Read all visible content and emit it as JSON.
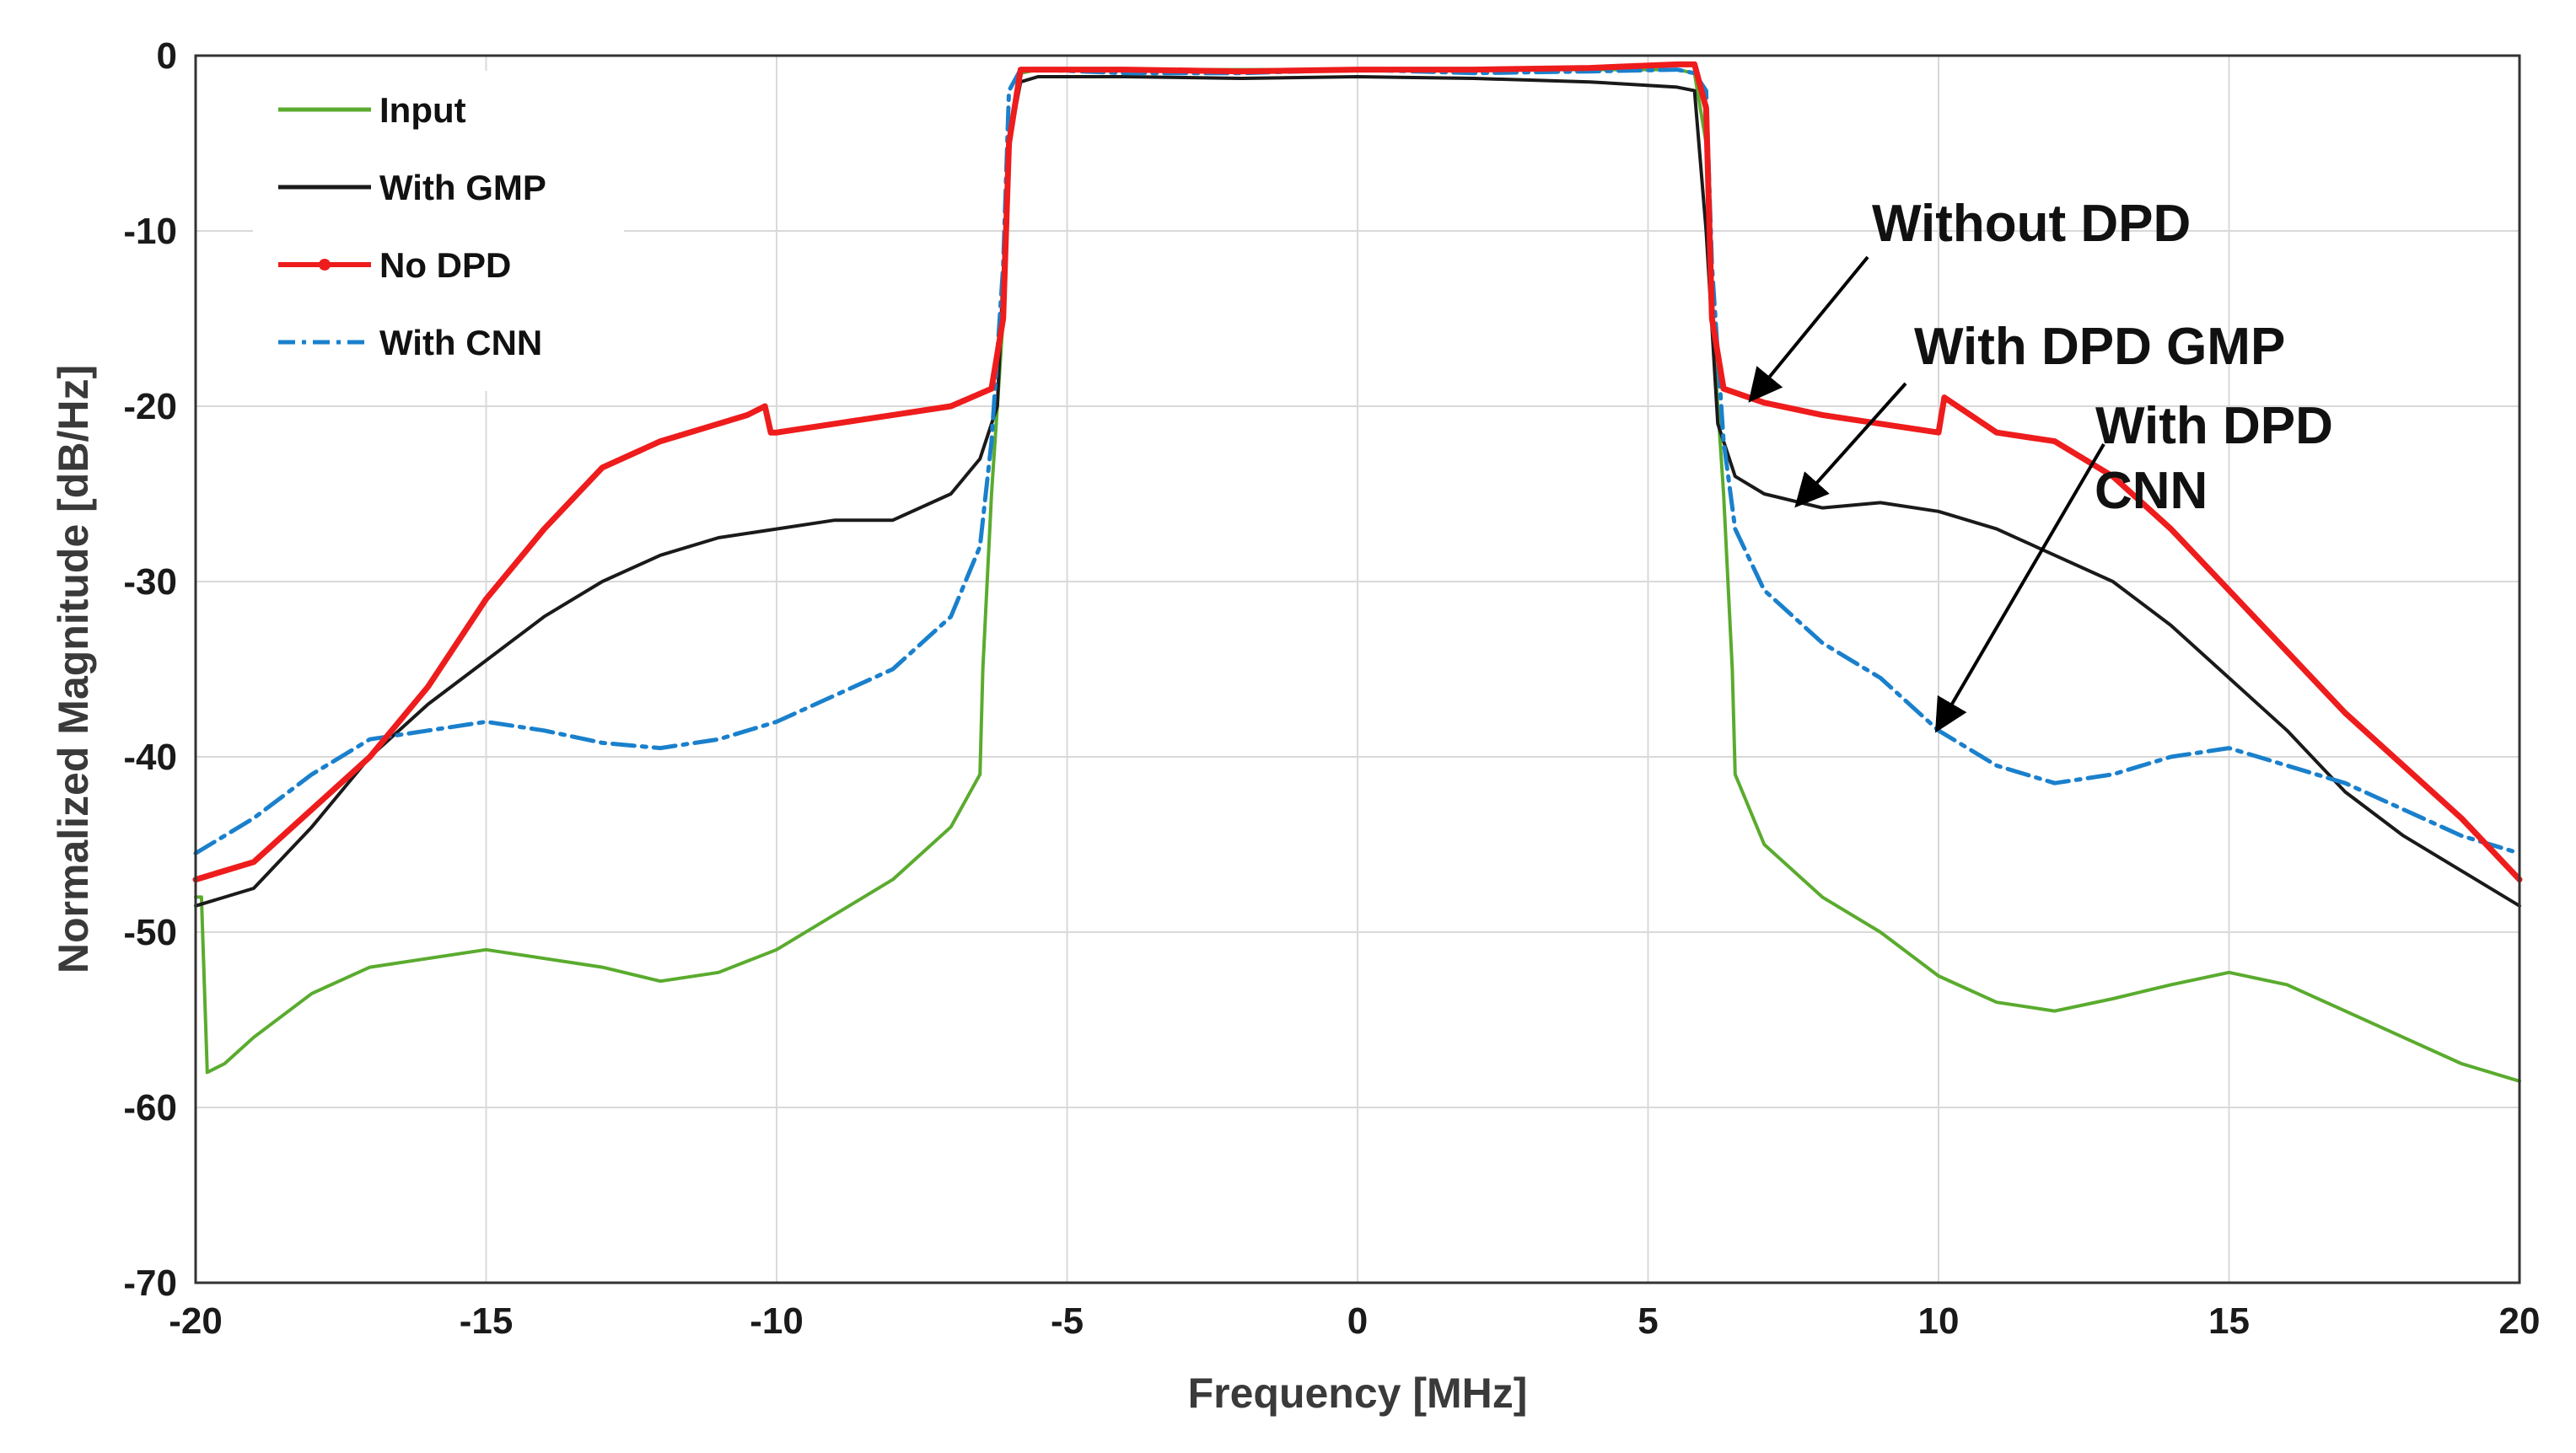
{
  "chart_data": {
    "type": "line",
    "title": "",
    "xlabel": "Frequency [MHz]",
    "ylabel": "Normalized Magnitude [dB/Hz]",
    "xlim": [
      -20,
      20
    ],
    "ylim": [
      -70,
      0
    ],
    "xticks": [
      -20,
      -15,
      -10,
      -5,
      0,
      5,
      10,
      15,
      20
    ],
    "yticks": [
      0,
      -10,
      -20,
      -30,
      -40,
      -50,
      -60,
      -70
    ],
    "xtick_labels": [
      "-20",
      "-15",
      "-10",
      "-5",
      "0",
      "5",
      "10",
      "15",
      "20"
    ],
    "ytick_labels": [
      "0",
      "-10",
      "-20",
      "-30",
      "-40",
      "-50",
      "-60",
      "-70"
    ],
    "grid": true,
    "legend_position": "top-left",
    "series": [
      {
        "name": "Input",
        "color": "#5aab2e",
        "style": "solid",
        "x": [
          -20,
          -19.9,
          -19.8,
          -19.5,
          -19,
          -18,
          -17,
          -16,
          -15,
          -14,
          -13,
          -12,
          -11,
          -10,
          -9,
          -8,
          -7,
          -6.5,
          -6.45,
          -6.3,
          -6.1,
          -6.0,
          -5.8,
          -5.5,
          -4,
          -2,
          0,
          2,
          4,
          5.5,
          5.8,
          6.0,
          6.1,
          6.3,
          6.45,
          6.5,
          7,
          8,
          9,
          10,
          11,
          12,
          13,
          14,
          15,
          16,
          17,
          18,
          19,
          20
        ],
        "y": [
          -48,
          -48,
          -58,
          -57.5,
          -56,
          -53.5,
          -52,
          -51.5,
          -51,
          -51.5,
          -52,
          -52.8,
          -52.3,
          -51,
          -49,
          -47,
          -44,
          -41,
          -35,
          -25,
          -15,
          -5,
          -1,
          -0.8,
          -0.8,
          -0.8,
          -0.8,
          -0.8,
          -0.8,
          -0.8,
          -1,
          -5,
          -15,
          -25,
          -35,
          -41,
          -45,
          -48,
          -50,
          -52.5,
          -54,
          -54.5,
          -53.8,
          -53,
          -52.3,
          -53,
          -54.5,
          -56,
          -57.5,
          -58.5
        ]
      },
      {
        "name": "With GMP",
        "color": "#1a1a1a",
        "style": "solid",
        "x": [
          -20,
          -19,
          -18,
          -17,
          -16,
          -15,
          -14,
          -13,
          -12,
          -11,
          -10,
          -9,
          -8,
          -7,
          -6.5,
          -6.2,
          -6.0,
          -5.8,
          -5.5,
          -4,
          -2,
          0,
          2,
          4,
          5.5,
          5.8,
          6.0,
          6.2,
          6.5,
          7,
          8,
          9,
          10,
          11,
          12,
          13,
          14,
          15,
          16,
          17,
          18,
          19,
          20
        ],
        "y": [
          -48.5,
          -47.5,
          -44,
          -40,
          -37,
          -34.5,
          -32,
          -30,
          -28.5,
          -27.5,
          -27,
          -26.5,
          -26.5,
          -25,
          -23,
          -20,
          -5,
          -1.5,
          -1.2,
          -1.2,
          -1.3,
          -1.2,
          -1.3,
          -1.5,
          -1.8,
          -2,
          -10,
          -21,
          -24,
          -25,
          -25.8,
          -25.5,
          -26,
          -27,
          -28.5,
          -30,
          -32.5,
          -35.5,
          -38.5,
          -42,
          -44.5,
          -46.5,
          -48.5
        ]
      },
      {
        "name": "No DPD",
        "color": "#ee1c1c",
        "style": "solid-marker",
        "x": [
          -20,
          -19,
          -18,
          -17,
          -16,
          -15,
          -14,
          -13,
          -12,
          -11,
          -10.5,
          -10.2,
          -10.1,
          -10,
          -9,
          -8,
          -7,
          -6.3,
          -6.1,
          -6.0,
          -5.8,
          -5.5,
          -4,
          -2,
          0,
          2,
          4,
          5.5,
          5.8,
          6.0,
          6.1,
          6.3,
          7,
          8,
          9,
          10,
          10.1,
          11,
          12,
          13,
          14,
          15,
          16,
          17,
          18,
          19,
          20
        ],
        "y": [
          -47,
          -46,
          -43,
          -40,
          -36,
          -31,
          -27,
          -23.5,
          -22,
          -21,
          -20.5,
          -20,
          -21.5,
          -21.5,
          -21,
          -20.5,
          -20,
          -19,
          -15,
          -5,
          -0.8,
          -0.8,
          -0.8,
          -0.9,
          -0.8,
          -0.8,
          -0.7,
          -0.5,
          -0.5,
          -3,
          -15,
          -19,
          -19.8,
          -20.5,
          -21,
          -21.5,
          -19.5,
          -21.5,
          -22,
          -24,
          -27,
          -30.5,
          -34,
          -37.5,
          -40.5,
          -43.5,
          -47
        ]
      },
      {
        "name": "With CNN",
        "color": "#1a80cc",
        "style": "dash-dot",
        "x": [
          -20,
          -19,
          -18,
          -17,
          -16,
          -15,
          -14,
          -13,
          -12,
          -11,
          -10,
          -9,
          -8,
          -7,
          -6.5,
          -6.3,
          -6.1,
          -6.0,
          -5.8,
          -5.5,
          -4,
          -2,
          0,
          2,
          4,
          5.5,
          5.8,
          6.0,
          6.1,
          6.3,
          6.5,
          7,
          8,
          9,
          10,
          11,
          12,
          13,
          14,
          15,
          16,
          17,
          18,
          19,
          20
        ],
        "y": [
          -45.5,
          -43.5,
          -41,
          -39,
          -38.5,
          -38,
          -38.5,
          -39.2,
          -39.5,
          -39,
          -38,
          -36.5,
          -35,
          -32,
          -28,
          -22,
          -12,
          -2,
          -0.8,
          -0.8,
          -1,
          -1,
          -0.8,
          -1,
          -0.9,
          -0.8,
          -1,
          -2,
          -12,
          -22,
          -27,
          -30.5,
          -33.5,
          -35.5,
          -38.5,
          -40.5,
          -41.5,
          -41,
          -40,
          -39.5,
          -40.5,
          -41.5,
          -43,
          -44.5,
          -45.5
        ]
      }
    ],
    "annotations": [
      {
        "text": "Without DPD",
        "points_to": {
          "x": 6.8,
          "y": -19.5
        }
      },
      {
        "text": "With DPD GMP",
        "points_to": {
          "x": 7.6,
          "y": -25.5
        }
      },
      {
        "text": "With DPD CNN",
        "points_to": {
          "x": 10.0,
          "y": -38.3
        }
      }
    ]
  }
}
